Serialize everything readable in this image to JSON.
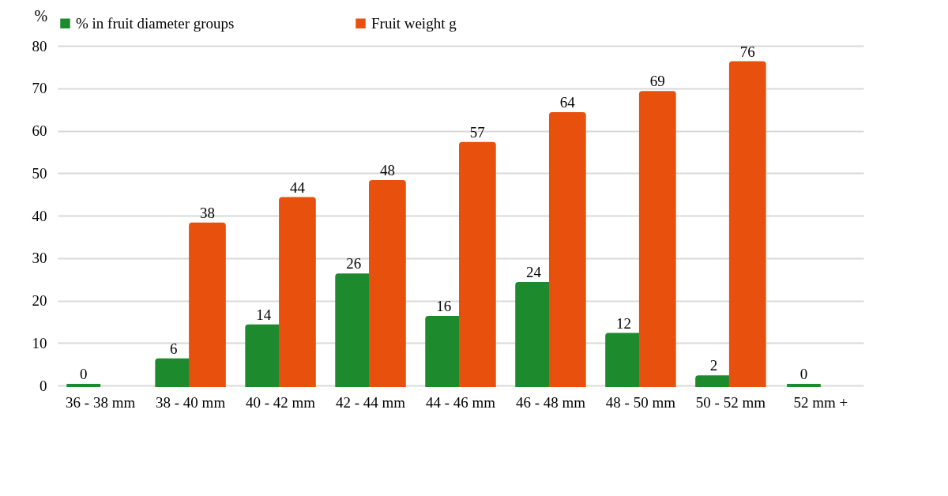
{
  "chart_data": {
    "type": "bar",
    "ylabel": "%",
    "categories": [
      "36 - 38 mm",
      "38 - 40 mm",
      "40 - 42 mm",
      "42 - 44 mm",
      "44 - 46 mm",
      "46 - 48 mm",
      "48 - 50 mm",
      "50 - 52 mm",
      "52 mm +"
    ],
    "series": [
      {
        "name": "% in fruit diameter groups",
        "color": "#1e8a2e",
        "values": [
          0,
          6,
          14,
          26,
          16,
          24,
          12,
          2,
          0
        ]
      },
      {
        "name": "Fruit weight g",
        "color": "#e8500e",
        "values": [
          null,
          38,
          44,
          48,
          57,
          64,
          69,
          76,
          null
        ]
      }
    ],
    "ylim": [
      0,
      80
    ],
    "yticks": [
      0,
      10,
      20,
      30,
      40,
      50,
      60,
      70,
      80
    ],
    "grid": "y",
    "legend": "top",
    "data_labels": true
  }
}
